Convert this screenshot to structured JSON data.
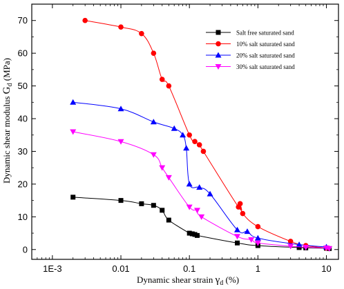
{
  "chart_data": {
    "type": "line",
    "x_scale": "log",
    "xlim": [
      0.0005,
      15
    ],
    "ylim": [
      -3,
      75
    ],
    "x_ticks": [
      0.001,
      0.01,
      0.1,
      1,
      10
    ],
    "x_tick_labels": [
      "1E-3",
      "0.01",
      "0.1",
      "1",
      "10"
    ],
    "y_ticks": [
      0,
      10,
      20,
      30,
      40,
      50,
      60,
      70
    ],
    "y_tick_labels": [
      "0",
      "10",
      "20",
      "30",
      "40",
      "50",
      "60",
      "70"
    ],
    "xlabel": {
      "main": "Dynamic shear strain ",
      "symbol": "γ",
      "sub": "d",
      "unit": " (%)"
    },
    "ylabel": {
      "main": "Dynamic shear modulus ",
      "symbol": "G",
      "sub": "d",
      "unit": " (MPa)"
    },
    "legend_position": "top-right",
    "grid": false,
    "series": [
      {
        "name": "Salt free saturated sand",
        "color": "#000000",
        "marker": "square",
        "x": [
          0.002,
          0.01,
          0.02,
          0.03,
          0.04,
          0.05,
          0.1,
          0.11,
          0.12,
          0.13,
          0.5,
          1,
          4,
          5,
          10,
          11
        ],
        "y": [
          16,
          15,
          14,
          13.5,
          12,
          9,
          5,
          4.8,
          4.6,
          4.3,
          2,
          1.2,
          0.6,
          0.5,
          0.4,
          0.3
        ]
      },
      {
        "name": "10% salt saturated sand",
        "color": "#ff0000",
        "marker": "circle",
        "x": [
          0.003,
          0.01,
          0.02,
          0.03,
          0.04,
          0.05,
          0.1,
          0.12,
          0.14,
          0.16,
          0.52,
          0.55,
          0.6,
          1,
          3,
          5,
          10
        ],
        "y": [
          70,
          68,
          66,
          60,
          52,
          50,
          35,
          33,
          32,
          30,
          13,
          14,
          11,
          7,
          2.5,
          1.2,
          0.5
        ]
      },
      {
        "name": "20% salt saturated sand",
        "color": "#0000ff",
        "marker": "triangle-up",
        "x": [
          0.002,
          0.01,
          0.03,
          0.06,
          0.08,
          0.09,
          0.1,
          0.14,
          0.2,
          0.5,
          0.7,
          1,
          4,
          10
        ],
        "y": [
          45,
          43,
          39,
          37,
          35,
          31,
          20,
          19,
          17,
          6,
          5.5,
          3.5,
          1.5,
          0.8
        ]
      },
      {
        "name": "30% salt saturated sand",
        "color": "#ff00ff",
        "marker": "triangle-down",
        "x": [
          0.002,
          0.01,
          0.03,
          0.04,
          0.05,
          0.1,
          0.13,
          0.15,
          0.5,
          0.8,
          1,
          3,
          5,
          10,
          11
        ],
        "y": [
          36,
          33,
          29,
          25,
          22,
          13,
          12,
          10,
          4,
          3,
          2,
          1,
          0.7,
          0.5,
          0.3
        ]
      }
    ]
  }
}
